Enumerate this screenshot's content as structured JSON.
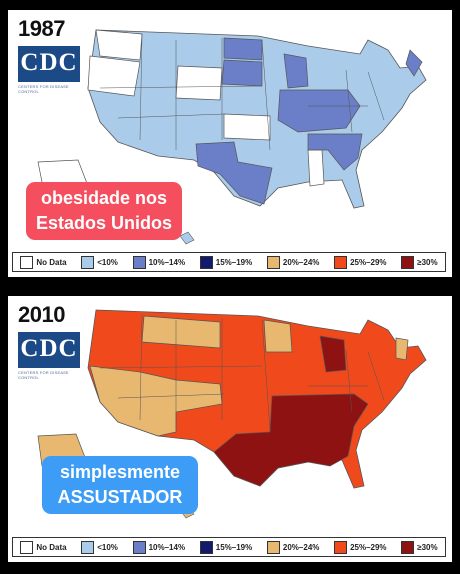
{
  "panels": [
    {
      "year": "1987",
      "logo": "CDC",
      "logo_subtitle": "CENTERS FOR DISEASE CONTROL",
      "caption_lines": [
        "obesidade nos",
        "Estados Unidos"
      ]
    },
    {
      "year": "2010",
      "logo": "CDC",
      "logo_subtitle": "CENTERS FOR DISEASE CONTROL",
      "caption_lines": [
        "simplesmente",
        "ASSUSTADOR"
      ]
    }
  ],
  "legend": [
    {
      "label": "No Data",
      "color": "#ffffff"
    },
    {
      "label": "<10%",
      "color": "#aacbea"
    },
    {
      "label": "10%–14%",
      "color": "#6a7fc8"
    },
    {
      "label": "15%–19%",
      "color": "#121a6e"
    },
    {
      "label": "20%–24%",
      "color": "#e8b870"
    },
    {
      "label": "25%–29%",
      "color": "#f04a1c"
    },
    {
      "label": "≥30%",
      "color": "#8e1212"
    }
  ],
  "colors": {
    "no_data": "#ffffff",
    "lt10": "#aacbea",
    "c10_14": "#6a7fc8",
    "c20_24": "#e8b870",
    "c25_29": "#f04a1c",
    "ge30": "#8e1212"
  }
}
